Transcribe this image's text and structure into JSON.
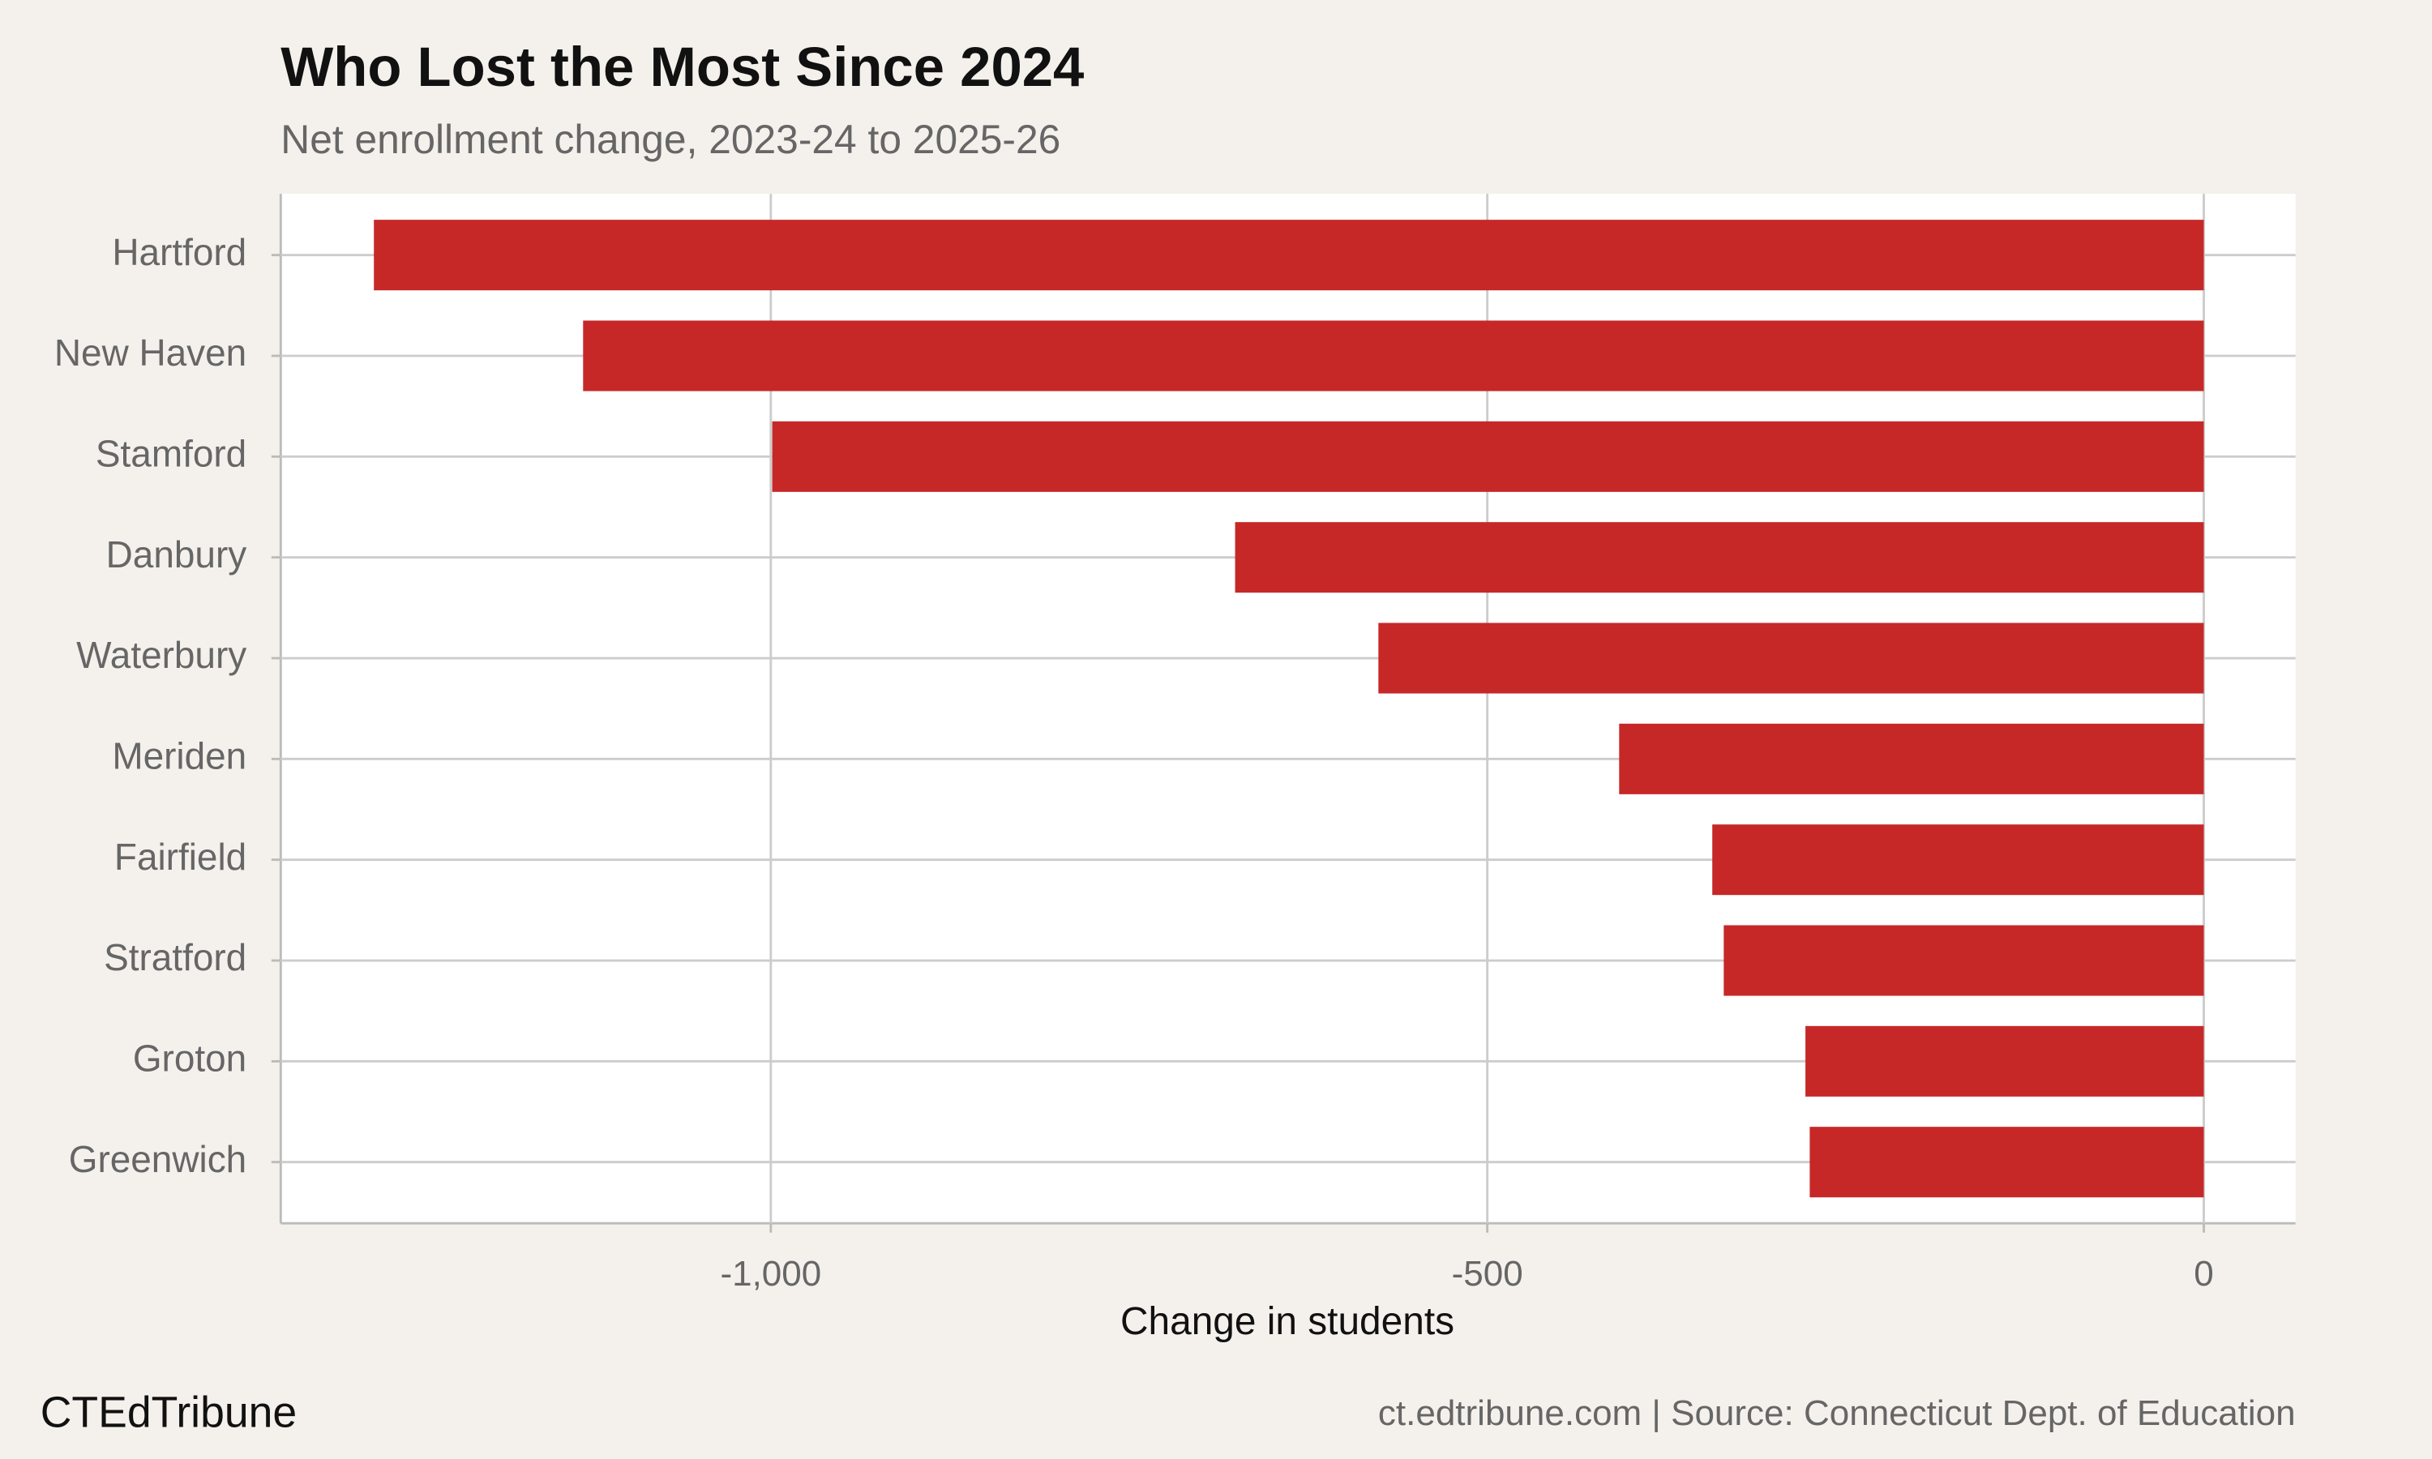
{
  "chart_data": {
    "type": "bar",
    "orientation": "horizontal",
    "title": "Who Lost the Most Since 2024",
    "subtitle": "Net enrollment change, 2023-24 to 2025-26",
    "x_label": "Change in students",
    "categories": [
      "Hartford",
      "New Haven",
      "Stamford",
      "Danbury",
      "Waterbury",
      "Meriden",
      "Fairfield",
      "Stratford",
      "Groton",
      "Greenwich"
    ],
    "values": [
      -1277,
      -1131,
      -999,
      -676,
      -576,
      -408,
      -343,
      -335,
      -278,
      -275
    ],
    "color": "#c62828",
    "xlim": [
      -1342,
      64
    ],
    "xticks": [
      {
        "value": -1000,
        "label": "-1,000"
      },
      -500,
      0
    ],
    "grid": true,
    "brand": "CTEdTribune",
    "source": "ct.edtribune.com | Source: Connecticut Dept. of Education"
  }
}
